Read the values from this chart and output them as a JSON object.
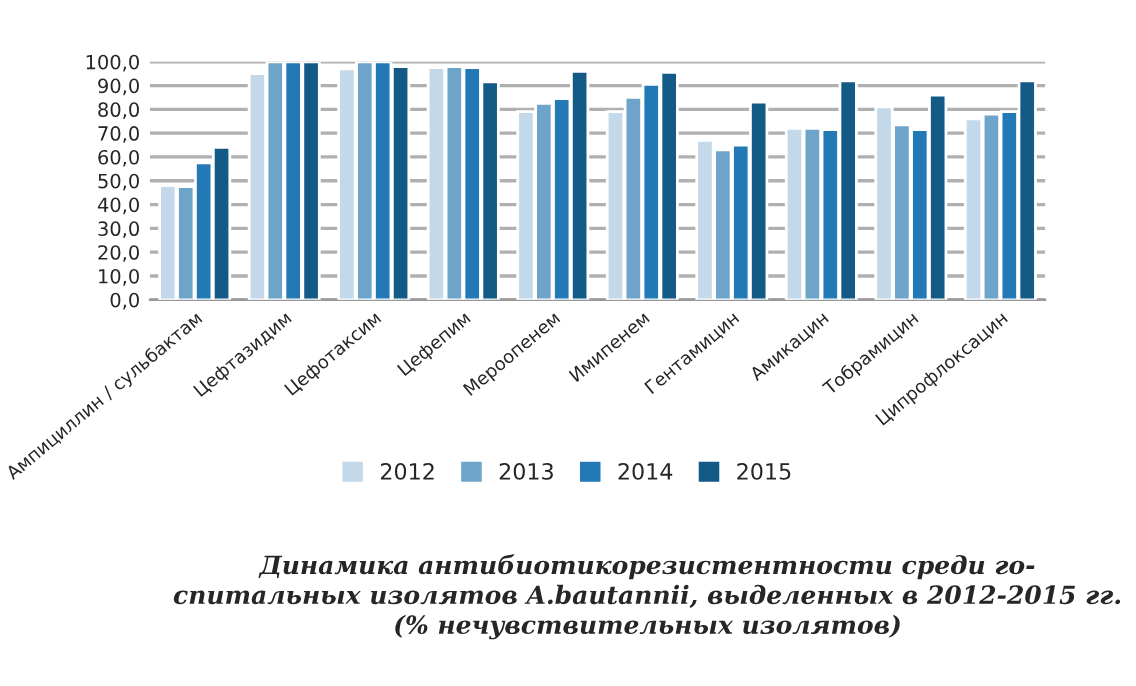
{
  "chart_data": {
    "type": "bar",
    "categories": [
      "Ампициллин / сульбактам",
      "Цефтазидим",
      "Цефотаксим",
      "Цефепим",
      "Мероопенем",
      "Имипенем",
      "Гентамицин",
      "Амикацин",
      "Тобрамицин",
      "Ципрофлоксацин"
    ],
    "series": [
      {
        "name": "2012",
        "color": "#c3d9ea",
        "values": [
          48,
          95,
          97,
          97.5,
          79,
          79,
          67,
          72,
          81,
          76
        ]
      },
      {
        "name": "2013",
        "color": "#6ea4c9",
        "values": [
          47.5,
          100,
          100,
          98,
          82.5,
          85,
          63,
          72,
          73.5,
          78
        ]
      },
      {
        "name": "2014",
        "color": "#2379b5",
        "values": [
          57.5,
          100,
          100,
          97.5,
          84.5,
          90.5,
          65,
          71.5,
          71.5,
          79
        ]
      },
      {
        "name": "2015",
        "color": "#135a86",
        "values": [
          64,
          100,
          98,
          91.5,
          96,
          95.5,
          83,
          92,
          86,
          92
        ]
      }
    ],
    "ylim": [
      0,
      100
    ],
    "yticks": [
      {
        "value": 0,
        "label": "0,0"
      },
      {
        "value": 10,
        "label": "10,0"
      },
      {
        "value": 20,
        "label": "20,0"
      },
      {
        "value": 30,
        "label": "30,0"
      },
      {
        "value": 40,
        "label": "40,0"
      },
      {
        "value": 50,
        "label": "50,0"
      },
      {
        "value": 60,
        "label": "60,0"
      },
      {
        "value": 70,
        "label": "70,0"
      },
      {
        "value": 80,
        "label": "80,0"
      },
      {
        "value": 90,
        "label": "90,0"
      },
      {
        "value": 100,
        "label": "100,0"
      }
    ],
    "grid": "y",
    "legend": "bottom",
    "annotations": [
      "Динамика антибиотикорезистентности среди го-\nспитальных изолятов A.bautannii, выделенных в 2012-2015 гг.\n(% нечувствительных изолятов)"
    ]
  }
}
